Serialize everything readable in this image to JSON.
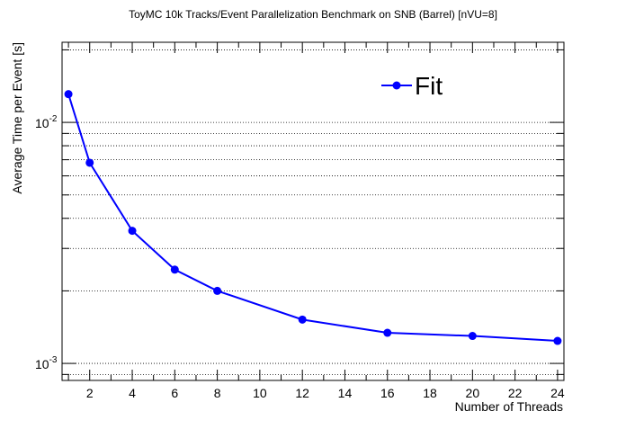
{
  "chart_data": {
    "type": "line",
    "title": "ToyMC 10k Tracks/Event Parallelization Benchmark on SNB (Barrel) [nVU=8]",
    "xlabel": "Number of Threads",
    "ylabel": "Average Time per Event [s]",
    "xlim": [
      0.7,
      24.3
    ],
    "ylim": [
      0.00085,
      0.0215
    ],
    "yscale": "log",
    "grid": "y-major-and-minor-dotted",
    "legend_position": "top-right",
    "x_ticks": [
      2,
      4,
      6,
      8,
      10,
      12,
      14,
      16,
      18,
      20,
      22,
      24
    ],
    "x_tick_labels": [
      "2",
      "4",
      "6",
      "8",
      "10",
      "12",
      "14",
      "16",
      "18",
      "20",
      "22",
      "24"
    ],
    "y_major_ticks": [
      0.001,
      0.01
    ],
    "y_tick_labels": [
      {
        "base": "10",
        "exponent": "-3"
      },
      {
        "base": "10",
        "exponent": "-2"
      }
    ],
    "series": [
      {
        "name": "Fit",
        "color": "#0000ff",
        "x": [
          1,
          2,
          4,
          6,
          8,
          12,
          16,
          20,
          24
        ],
        "y": [
          0.0131,
          0.0068,
          0.00355,
          0.00245,
          0.002,
          0.00152,
          0.00134,
          0.0013,
          0.00124
        ]
      }
    ]
  }
}
